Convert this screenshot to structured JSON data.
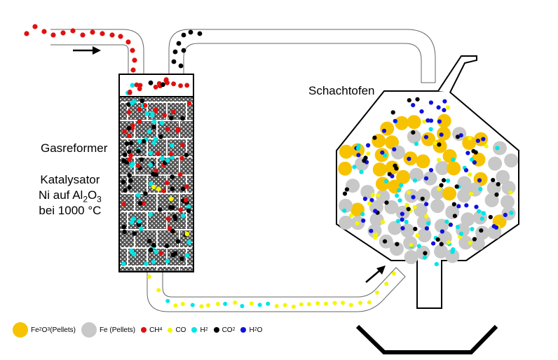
{
  "labels": {
    "shaft_furnace": "Schachtofen",
    "gas_reformer": "Gasreformer",
    "catalyst_line1": "Katalysator",
    "catalyst_line2_prefix": "Ni auf Al",
    "catalyst_sub1": "2",
    "catalyst_line2_mid": "O",
    "catalyst_sub2": "3",
    "catalyst_line3": "bei 1000 °C"
  },
  "legend": [
    {
      "key": "fe2o3",
      "color": "#f7c300",
      "text": "Fe",
      "sub1": "2",
      "mid": "O",
      "sub2": "3",
      "suffix": " (Pellets)",
      "size": 22
    },
    {
      "key": "fe",
      "color": "#c8c8c8",
      "text": "Fe (Pellets)",
      "size": 22
    },
    {
      "key": "ch4",
      "color": "#e01010",
      "text": "CH",
      "sub1": "4",
      "size": 8
    },
    {
      "key": "co",
      "color": "#f5f500",
      "text": "CO",
      "size": 7
    },
    {
      "key": "h2",
      "color": "#00e5e5",
      "text": "H",
      "sub1": "2",
      "size": 8
    },
    {
      "key": "co2",
      "color": "#000000",
      "text": "CO",
      "sub1": "2",
      "size": 8
    },
    {
      "key": "h2o",
      "color": "#1010e0",
      "text": "H",
      "sub1": "2",
      "mid": "O",
      "size": 8
    }
  ],
  "colors": {
    "fe2o3": "#f7c300",
    "fe": "#c8c8c8",
    "ch4": "#e01010",
    "co": "#f5f500",
    "h2": "#00e5e5",
    "co2": "#000000",
    "h2o": "#1010e0"
  },
  "icons": [
    "flow-arrow-icon",
    "flow-arrow-icon"
  ]
}
